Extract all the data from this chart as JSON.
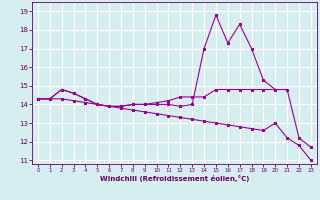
{
  "xlabel": "Windchill (Refroidissement éolien,°C)",
  "bg_color": "#d6eef0",
  "grid_color": "#ffffff",
  "line_color": "#990099",
  "x_hours": [
    0,
    1,
    2,
    3,
    4,
    5,
    6,
    7,
    8,
    9,
    10,
    11,
    12,
    13,
    14,
    15,
    16,
    17,
    18,
    19,
    20,
    21,
    22,
    23
  ],
  "line1_y": [
    14.3,
    14.3,
    14.8,
    14.6,
    14.3,
    14.0,
    13.9,
    13.9,
    14.0,
    14.0,
    14.1,
    14.2,
    14.4,
    14.4,
    14.4,
    14.8,
    14.8,
    14.8,
    14.8,
    14.8,
    14.8,
    null,
    null,
    null
  ],
  "line2_y": [
    14.3,
    14.3,
    14.8,
    14.6,
    14.3,
    14.0,
    13.9,
    13.9,
    14.0,
    14.0,
    14.0,
    14.0,
    13.9,
    14.0,
    17.0,
    18.8,
    17.3,
    18.3,
    17.0,
    15.3,
    14.8,
    14.8,
    12.2,
    11.7
  ],
  "line3_y": [
    14.3,
    14.3,
    14.3,
    14.2,
    14.1,
    14.0,
    13.9,
    13.8,
    13.7,
    13.6,
    13.5,
    13.4,
    13.3,
    13.2,
    13.1,
    13.0,
    12.9,
    12.8,
    12.7,
    12.6,
    13.0,
    12.2,
    11.8,
    11.0
  ],
  "ylim": [
    10.8,
    19.5
  ],
  "xlim": [
    -0.5,
    23.5
  ],
  "yticks": [
    11,
    12,
    13,
    14,
    15,
    16,
    17,
    18,
    19
  ],
  "xticks": [
    0,
    1,
    2,
    3,
    4,
    5,
    6,
    7,
    8,
    9,
    10,
    11,
    12,
    13,
    14,
    15,
    16,
    17,
    18,
    19,
    20,
    21,
    22,
    23
  ]
}
